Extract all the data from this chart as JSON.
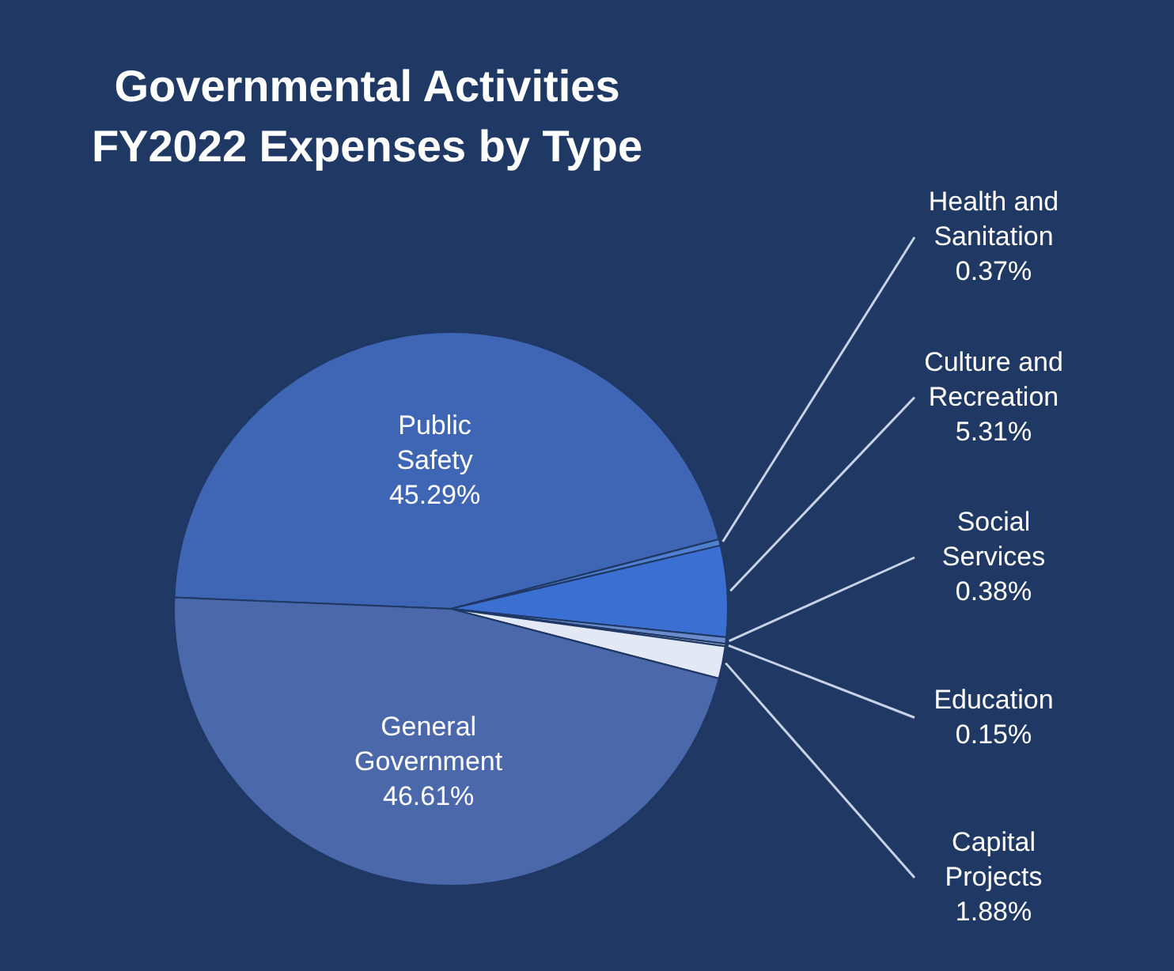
{
  "chart_data": {
    "type": "pie",
    "title": "Governmental Activities FY2022 Expenses by Type",
    "categories": [
      "Public Safety",
      "Health and Sanitation",
      "Culture and Recreation",
      "Social Services",
      "Education",
      "Capital Projects",
      "General Government"
    ],
    "values": [
      45.29,
      0.37,
      5.31,
      0.38,
      0.15,
      1.88,
      46.61
    ],
    "value_labels": [
      "45.29%",
      "0.37%",
      "5.31%",
      "0.38%",
      "0.15%",
      "1.88%",
      "46.61%"
    ],
    "colors": [
      "#3f66b4",
      "#4f7fd0",
      "#3b6fd2",
      "#6a8ccc",
      "#a9b6d4",
      "#e3e9f4",
      "#4a68aa"
    ]
  }
}
